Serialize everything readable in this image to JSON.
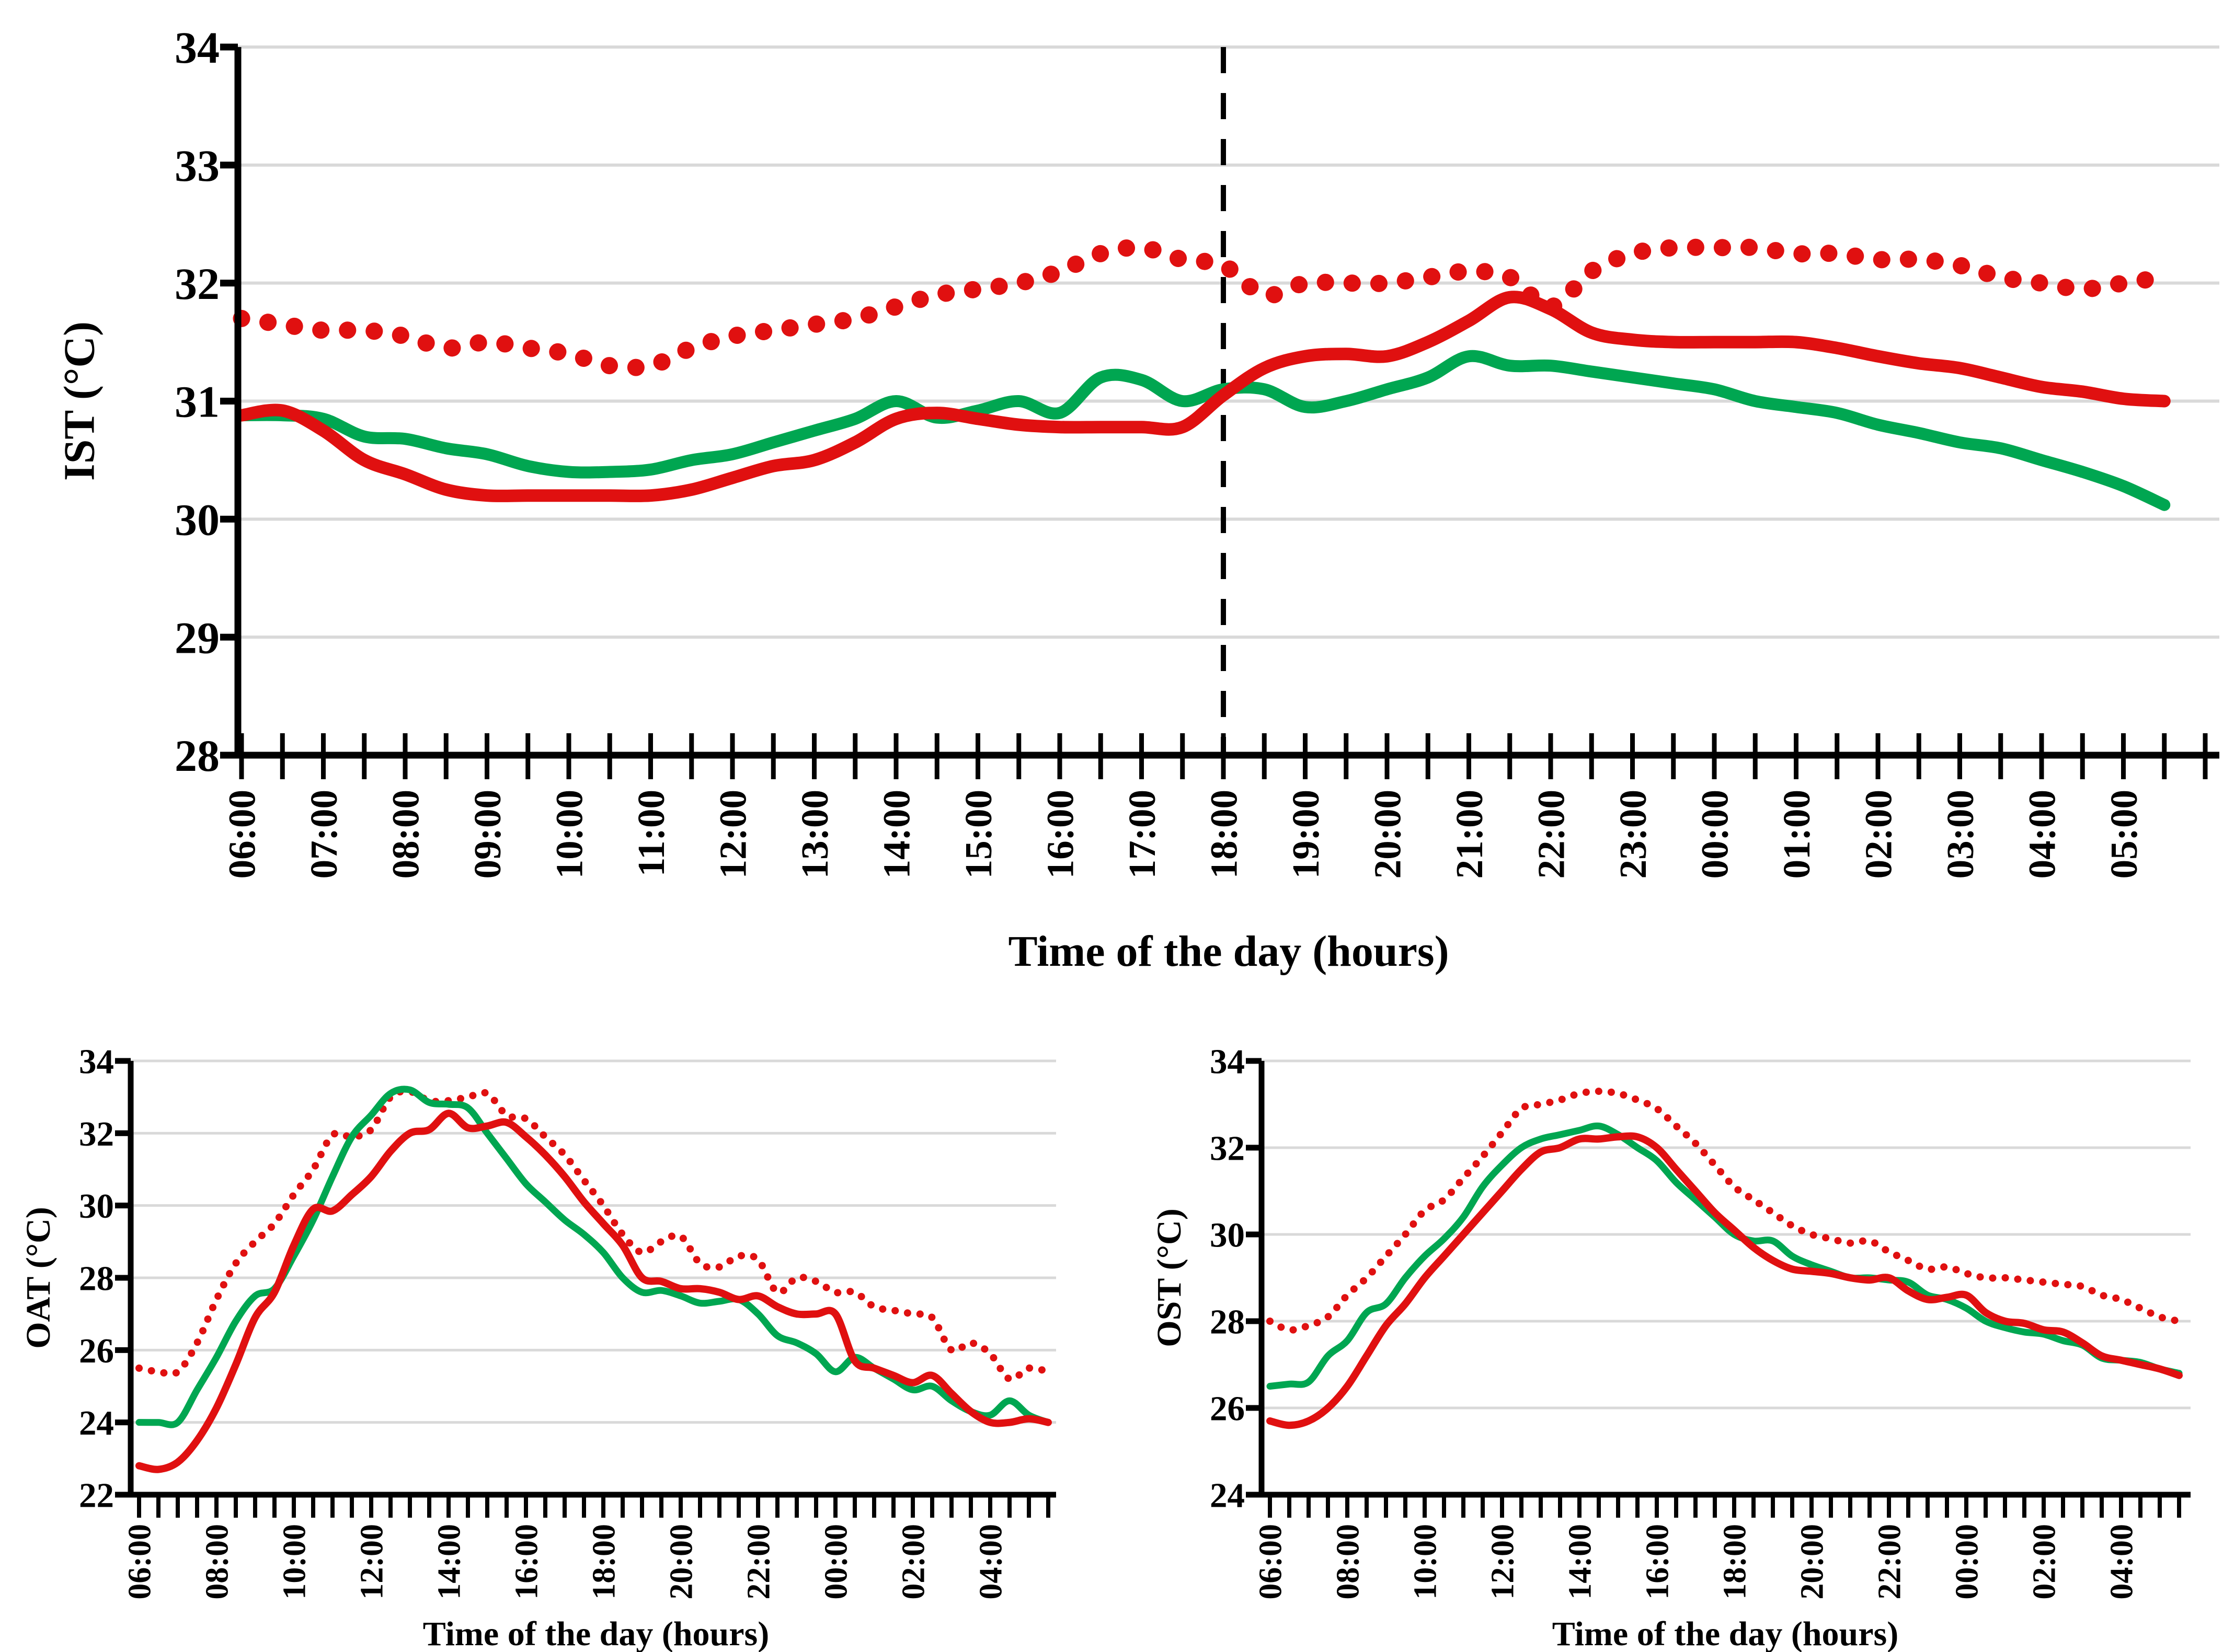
{
  "figure": {
    "background": "#FFFFFF",
    "description": "Three temperature line charts: IST (top), OAT (bottom left), OST (bottom right)"
  },
  "colors": {
    "red": "#E01010",
    "green": "#00A651",
    "grid": "#D9D9D9",
    "axis": "#000000",
    "vline": "#000000"
  },
  "chart_data": [
    {
      "id": "ist",
      "type": "line",
      "title": "",
      "ylabel": "IST (°C)",
      "xlabel": "Time of the day (hours)",
      "ylim": [
        28,
        34
      ],
      "yticks": [
        28,
        29,
        30,
        31,
        32,
        33,
        34
      ],
      "grid": true,
      "legend": "none",
      "vline": {
        "x": "18:00",
        "style": "dashed",
        "color": "#000000"
      },
      "categories": [
        "06:00",
        "06:30",
        "07:00",
        "07:30",
        "08:00",
        "08:30",
        "09:00",
        "09:30",
        "10:00",
        "10:30",
        "11:00",
        "11:30",
        "12:00",
        "12:30",
        "13:00",
        "13:30",
        "14:00",
        "14:30",
        "15:00",
        "15:30",
        "16:00",
        "16:30",
        "17:00",
        "17:30",
        "18:00",
        "18:30",
        "19:00",
        "19:30",
        "20:00",
        "20:30",
        "21:00",
        "21:30",
        "22:00",
        "22:30",
        "23:00",
        "23:30",
        "00:00",
        "00:30",
        "01:00",
        "01:30",
        "02:00",
        "02:30",
        "03:00",
        "03:30",
        "04:00",
        "04:30",
        "05:00",
        "05:30"
      ],
      "xtick_labels": [
        "06:00",
        "07:00",
        "08:00",
        "09:00",
        "10:00",
        "11:00",
        "12:00",
        "13:00",
        "14:00",
        "15:00",
        "16:00",
        "17:00",
        "18:00",
        "19:00",
        "20:00",
        "21:00",
        "22:00",
        "23:00",
        "00:00",
        "01:00",
        "02:00",
        "03:00",
        "04:00",
        "05:00"
      ],
      "series": [
        {
          "name": "red-dotted",
          "style": "dotted",
          "color": "#E01010",
          "values": [
            31.7,
            31.65,
            31.6,
            31.6,
            31.55,
            31.45,
            31.5,
            31.45,
            31.4,
            31.3,
            31.3,
            31.45,
            31.55,
            31.6,
            31.65,
            31.7,
            31.8,
            31.9,
            31.95,
            32.0,
            32.1,
            32.25,
            32.3,
            32.2,
            32.15,
            31.9,
            32.0,
            32.0,
            32.0,
            32.05,
            32.1,
            32.05,
            31.8,
            32.1,
            32.25,
            32.3,
            32.3,
            32.3,
            32.25,
            32.25,
            32.2,
            32.2,
            32.15,
            32.05,
            32.0,
            31.95,
            32.0,
            32.05
          ]
        },
        {
          "name": "green-solid",
          "style": "solid",
          "color": "#00A651",
          "values": [
            30.88,
            30.88,
            30.85,
            30.7,
            30.68,
            30.6,
            30.55,
            30.45,
            30.4,
            30.4,
            30.42,
            30.5,
            30.55,
            30.65,
            30.75,
            30.85,
            31.0,
            30.86,
            30.92,
            31.0,
            30.9,
            31.2,
            31.18,
            31.0,
            31.1,
            31.1,
            30.95,
            31.0,
            31.1,
            31.2,
            31.38,
            31.3,
            31.3,
            31.25,
            31.2,
            31.15,
            31.1,
            31.0,
            30.95,
            30.9,
            30.8,
            30.73,
            30.65,
            30.6,
            30.5,
            30.4,
            30.28,
            30.12
          ]
        },
        {
          "name": "red-solid",
          "style": "solid",
          "color": "#E01010",
          "values": [
            30.88,
            30.92,
            30.75,
            30.5,
            30.38,
            30.25,
            30.2,
            30.2,
            30.2,
            30.2,
            30.2,
            30.25,
            30.35,
            30.45,
            30.5,
            30.65,
            30.85,
            30.9,
            30.85,
            30.8,
            30.78,
            30.78,
            30.78,
            30.78,
            31.05,
            31.28,
            31.38,
            31.4,
            31.38,
            31.5,
            31.68,
            31.88,
            31.78,
            31.58,
            31.52,
            31.5,
            31.5,
            31.5,
            31.5,
            31.45,
            31.38,
            31.32,
            31.28,
            31.2,
            31.12,
            31.08,
            31.02,
            31.0
          ]
        }
      ]
    },
    {
      "id": "oat",
      "type": "line",
      "title": "",
      "ylabel": "OAT (°C)",
      "xlabel": "Time of the day (hours)",
      "ylim": [
        22,
        34
      ],
      "yticks": [
        22,
        24,
        26,
        28,
        30,
        32,
        34
      ],
      "grid": true,
      "legend": "none",
      "categories": [
        "06:00",
        "06:30",
        "07:00",
        "07:30",
        "08:00",
        "08:30",
        "09:00",
        "09:30",
        "10:00",
        "10:30",
        "11:00",
        "11:30",
        "12:00",
        "12:30",
        "13:00",
        "13:30",
        "14:00",
        "14:30",
        "15:00",
        "15:30",
        "16:00",
        "16:30",
        "17:00",
        "17:30",
        "18:00",
        "18:30",
        "19:00",
        "19:30",
        "20:00",
        "20:30",
        "21:00",
        "21:30",
        "22:00",
        "22:30",
        "23:00",
        "23:30",
        "00:00",
        "00:30",
        "01:00",
        "01:30",
        "02:00",
        "02:30",
        "03:00",
        "03:30",
        "04:00",
        "04:30",
        "05:00",
        "05:30"
      ],
      "xtick_labels": [
        "06:00",
        "08:00",
        "10:00",
        "12:00",
        "14:00",
        "16:00",
        "18:00",
        "20:00",
        "22:00",
        "00:00",
        "02:00",
        "04:00"
      ],
      "series": [
        {
          "name": "red-dotted",
          "style": "dotted",
          "color": "#E01010",
          "values": [
            25.5,
            25.4,
            25.4,
            26.2,
            27.4,
            28.4,
            29.0,
            29.5,
            30.3,
            31.0,
            31.95,
            31.9,
            32.1,
            33.0,
            33.15,
            32.9,
            32.9,
            33.0,
            33.1,
            32.5,
            32.4,
            31.9,
            31.4,
            30.7,
            30.0,
            29.2,
            28.7,
            29.0,
            29.15,
            28.4,
            28.3,
            28.6,
            28.5,
            27.6,
            28.0,
            27.9,
            27.6,
            27.6,
            27.2,
            27.1,
            27.0,
            26.9,
            26.0,
            26.2,
            25.9,
            25.2,
            25.5,
            25.4
          ]
        },
        {
          "name": "green-solid",
          "style": "solid",
          "color": "#00A651",
          "values": [
            24.0,
            24.0,
            24.0,
            24.9,
            25.8,
            26.8,
            27.5,
            27.7,
            28.6,
            29.6,
            30.8,
            31.9,
            32.5,
            33.1,
            33.2,
            32.85,
            32.8,
            32.7,
            32.0,
            31.3,
            30.6,
            30.1,
            29.6,
            29.2,
            28.7,
            28.0,
            27.6,
            27.65,
            27.5,
            27.3,
            27.35,
            27.4,
            27.0,
            26.4,
            26.2,
            25.9,
            25.4,
            25.8,
            25.5,
            25.2,
            24.9,
            25.0,
            24.6,
            24.3,
            24.2,
            24.6,
            24.2,
            24.0
          ]
        },
        {
          "name": "red-solid",
          "style": "solid",
          "color": "#E01010",
          "values": [
            22.8,
            22.7,
            22.9,
            23.5,
            24.4,
            25.6,
            26.9,
            27.6,
            28.9,
            29.9,
            29.85,
            30.3,
            30.8,
            31.5,
            32.0,
            32.1,
            32.55,
            32.15,
            32.2,
            32.3,
            31.9,
            31.4,
            30.8,
            30.1,
            29.5,
            28.9,
            28.0,
            27.9,
            27.7,
            27.7,
            27.6,
            27.4,
            27.5,
            27.2,
            27.0,
            27.0,
            27.0,
            25.7,
            25.5,
            25.3,
            25.1,
            25.3,
            24.8,
            24.3,
            24.0,
            24.0,
            24.1,
            24.0
          ]
        }
      ]
    },
    {
      "id": "ost",
      "type": "line",
      "title": "",
      "ylabel": "OST (°C)",
      "xlabel": "Time of the day (hours)",
      "ylim": [
        24,
        34
      ],
      "yticks": [
        24,
        26,
        28,
        30,
        32,
        34
      ],
      "grid": true,
      "legend": "none",
      "categories": [
        "06:00",
        "06:30",
        "07:00",
        "07:30",
        "08:00",
        "08:30",
        "09:00",
        "09:30",
        "10:00",
        "10:30",
        "11:00",
        "11:30",
        "12:00",
        "12:30",
        "13:00",
        "13:30",
        "14:00",
        "14:30",
        "15:00",
        "15:30",
        "16:00",
        "16:30",
        "17:00",
        "17:30",
        "18:00",
        "18:30",
        "19:00",
        "19:30",
        "20:00",
        "20:30",
        "21:00",
        "21:30",
        "22:00",
        "22:30",
        "23:00",
        "23:30",
        "00:00",
        "00:30",
        "01:00",
        "01:30",
        "02:00",
        "02:30",
        "03:00",
        "03:30",
        "04:00",
        "04:30",
        "05:00",
        "05:30"
      ],
      "xtick_labels": [
        "06:00",
        "08:00",
        "10:00",
        "12:00",
        "14:00",
        "16:00",
        "18:00",
        "20:00",
        "22:00",
        "00:00",
        "02:00",
        "04:00"
      ],
      "series": [
        {
          "name": "red-dotted",
          "style": "dotted",
          "color": "#E01010",
          "values": [
            28.0,
            27.8,
            27.9,
            28.1,
            28.6,
            29.0,
            29.5,
            30.0,
            30.55,
            30.8,
            31.3,
            31.8,
            32.35,
            32.9,
            33.0,
            33.1,
            33.25,
            33.3,
            33.25,
            33.1,
            32.9,
            32.5,
            32.1,
            31.6,
            31.1,
            30.8,
            30.5,
            30.2,
            30.0,
            29.9,
            29.8,
            29.85,
            29.6,
            29.4,
            29.2,
            29.25,
            29.1,
            29.0,
            29.0,
            28.95,
            28.9,
            28.85,
            28.8,
            28.6,
            28.5,
            28.3,
            28.1,
            28.0
          ]
        },
        {
          "name": "green-solid",
          "style": "solid",
          "color": "#00A651",
          "values": [
            26.5,
            26.55,
            26.6,
            27.2,
            27.55,
            28.2,
            28.4,
            29.0,
            29.5,
            29.9,
            30.4,
            31.1,
            31.6,
            32.0,
            32.2,
            32.3,
            32.4,
            32.5,
            32.3,
            32.0,
            31.7,
            31.2,
            30.8,
            30.4,
            30.0,
            29.85,
            29.85,
            29.5,
            29.3,
            29.15,
            29.0,
            29.0,
            28.95,
            28.9,
            28.6,
            28.5,
            28.3,
            28.0,
            27.85,
            27.75,
            27.7,
            27.55,
            27.45,
            27.15,
            27.1,
            27.05,
            26.9,
            26.8
          ]
        },
        {
          "name": "red-solid",
          "style": "solid",
          "color": "#E01010",
          "values": [
            25.7,
            25.6,
            25.7,
            26.0,
            26.5,
            27.2,
            27.9,
            28.4,
            29.0,
            29.5,
            30.0,
            30.5,
            31.0,
            31.5,
            31.9,
            32.0,
            32.2,
            32.2,
            32.25,
            32.25,
            32.0,
            31.5,
            31.0,
            30.5,
            30.1,
            29.7,
            29.4,
            29.2,
            29.15,
            29.1,
            29.0,
            28.95,
            29.0,
            28.7,
            28.5,
            28.55,
            28.6,
            28.2,
            28.0,
            27.95,
            27.8,
            27.75,
            27.5,
            27.2,
            27.1,
            27.0,
            26.9,
            26.75
          ]
        }
      ]
    }
  ]
}
